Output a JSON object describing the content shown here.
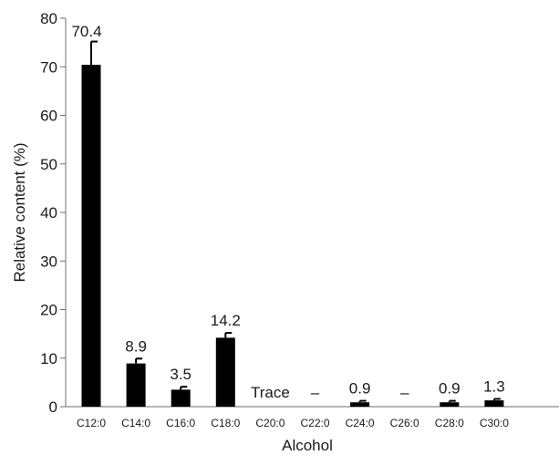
{
  "chart_data": {
    "type": "bar",
    "title": "",
    "xlabel": "Alcohol",
    "ylabel": "Relative content (%)",
    "ylim": [
      0,
      80
    ],
    "yticks": [
      "0",
      "10",
      "20",
      "30",
      "40",
      "50",
      "60",
      "70",
      "80"
    ],
    "categories": [
      "C12:0",
      "C14:0",
      "C16:0",
      "C18:0",
      "C20:0",
      "C22:0",
      "C24:0",
      "C26:0",
      "C28:0",
      "C30:0"
    ],
    "values": [
      70.4,
      8.9,
      3.5,
      14.2,
      0,
      0,
      0.9,
      0,
      0.9,
      1.3
    ],
    "errors": [
      4.8,
      1.0,
      0.6,
      1.0,
      0,
      0,
      0.3,
      0,
      0.3,
      0.3
    ],
    "labels": [
      "70.4",
      "8.9",
      "3.5",
      "14.2",
      "Trace",
      "–",
      "0.9",
      "–",
      "0.9",
      "1.3"
    ],
    "bar_color": "#000000",
    "grid": false,
    "legend": "none"
  }
}
